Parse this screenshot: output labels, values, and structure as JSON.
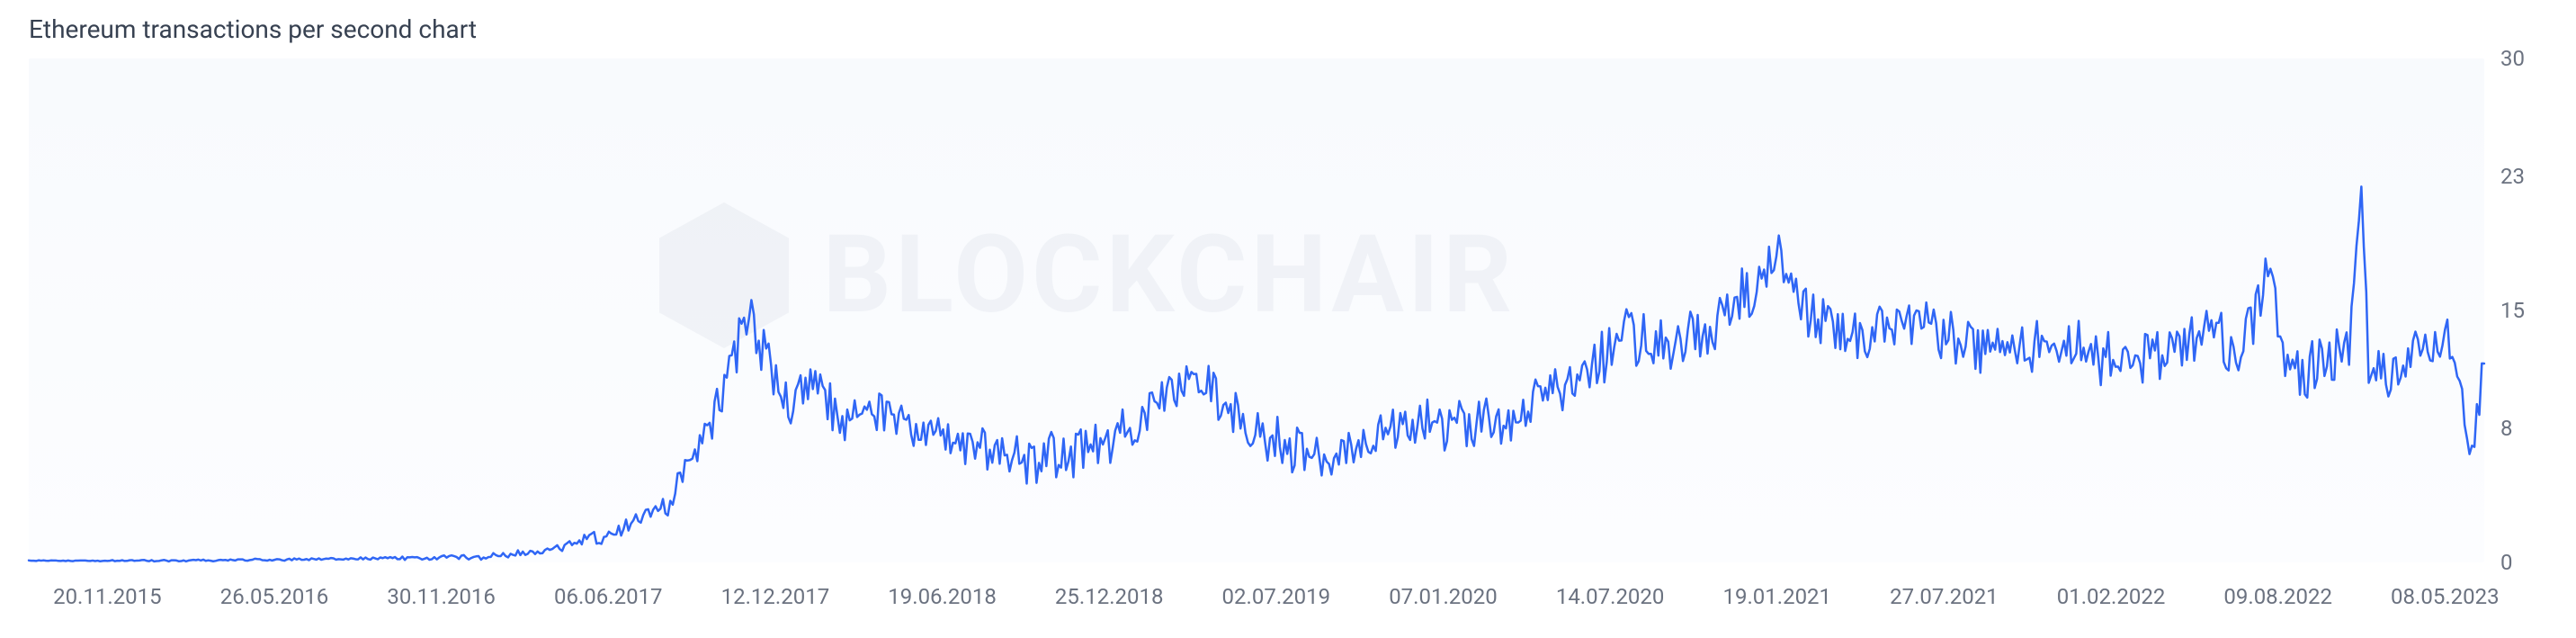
{
  "chart": {
    "type": "line",
    "title": "Ethereum transactions per second chart",
    "title_fontsize": 28,
    "title_color": "#374151",
    "background_gradient_top": "#f8fafd",
    "background_gradient_bottom": "#fcfdff",
    "watermark_text": "BLOCKCHAIR",
    "watermark_color": "#5b7390",
    "watermark_opacity": 0.06,
    "line_color": "#2f66f5",
    "line_width": 2.5,
    "y_axis": {
      "min": 0,
      "max": 30,
      "ticks": [
        0,
        8,
        15,
        23,
        30
      ],
      "label_color": "#6b7280",
      "label_fontsize": 24
    },
    "x_axis": {
      "labels": [
        "20.11.2015",
        "26.05.2016",
        "30.11.2016",
        "06.06.2017",
        "12.12.2017",
        "19.06.2018",
        "25.12.2018",
        "02.07.2019",
        "07.01.2020",
        "14.07.2020",
        "19.01.2021",
        "27.07.2021",
        "01.02.2022",
        "09.08.2022",
        "08.05.2023"
      ],
      "positions_pct": [
        3.2,
        10.0,
        16.8,
        23.6,
        30.4,
        37.2,
        44.0,
        50.8,
        57.6,
        64.4,
        71.2,
        78.0,
        84.8,
        91.6,
        98.4
      ],
      "label_color": "#6b7280",
      "label_fontsize": 24
    },
    "series": {
      "n_points": 1000,
      "base": [
        [
          0.0,
          0.1
        ],
        [
          0.03,
          0.1
        ],
        [
          0.06,
          0.1
        ],
        [
          0.09,
          0.15
        ],
        [
          0.12,
          0.2
        ],
        [
          0.15,
          0.25
        ],
        [
          0.18,
          0.3
        ],
        [
          0.2,
          0.5
        ],
        [
          0.22,
          1.0
        ],
        [
          0.24,
          1.8
        ],
        [
          0.26,
          3.5
        ],
        [
          0.27,
          6.0
        ],
        [
          0.28,
          9.0
        ],
        [
          0.29,
          13.5
        ],
        [
          0.295,
          14.8
        ],
        [
          0.3,
          12.0
        ],
        [
          0.31,
          9.5
        ],
        [
          0.32,
          11.0
        ],
        [
          0.33,
          8.5
        ],
        [
          0.35,
          9.0
        ],
        [
          0.37,
          7.5
        ],
        [
          0.39,
          6.8
        ],
        [
          0.41,
          6.2
        ],
        [
          0.43,
          6.5
        ],
        [
          0.45,
          8.0
        ],
        [
          0.47,
          10.5
        ],
        [
          0.48,
          11.0
        ],
        [
          0.49,
          9.0
        ],
        [
          0.51,
          7.0
        ],
        [
          0.53,
          5.8
        ],
        [
          0.55,
          7.5
        ],
        [
          0.57,
          8.5
        ],
        [
          0.59,
          8.0
        ],
        [
          0.61,
          9.5
        ],
        [
          0.63,
          11.0
        ],
        [
          0.65,
          13.5
        ],
        [
          0.67,
          13.0
        ],
        [
          0.69,
          14.5
        ],
        [
          0.7,
          16.0
        ],
        [
          0.71,
          18.5
        ],
        [
          0.715,
          17.0
        ],
        [
          0.73,
          14.0
        ],
        [
          0.75,
          13.5
        ],
        [
          0.77,
          14.5
        ],
        [
          0.79,
          13.0
        ],
        [
          0.81,
          12.5
        ],
        [
          0.83,
          13.0
        ],
        [
          0.85,
          12.0
        ],
        [
          0.87,
          12.5
        ],
        [
          0.89,
          13.5
        ],
        [
          0.9,
          12.0
        ],
        [
          0.91,
          16.5
        ],
        [
          0.912,
          18.0
        ],
        [
          0.918,
          12.0
        ],
        [
          0.93,
          11.5
        ],
        [
          0.945,
          12.5
        ],
        [
          0.95,
          21.5
        ],
        [
          0.953,
          12.0
        ],
        [
          0.96,
          11.0
        ],
        [
          0.97,
          12.0
        ],
        [
          0.985,
          13.5
        ],
        [
          0.99,
          10.0
        ],
        [
          0.995,
          7.0
        ],
        [
          1.0,
          12.0
        ]
      ],
      "noise_amplitude": [
        [
          0.0,
          0.02
        ],
        [
          0.15,
          0.08
        ],
        [
          0.2,
          0.2
        ],
        [
          0.25,
          0.5
        ],
        [
          0.28,
          1.2
        ],
        [
          0.3,
          1.5
        ],
        [
          0.35,
          1.2
        ],
        [
          0.45,
          1.4
        ],
        [
          0.55,
          1.3
        ],
        [
          0.65,
          1.5
        ],
        [
          0.72,
          1.6
        ],
        [
          0.8,
          1.4
        ],
        [
          0.9,
          1.5
        ],
        [
          0.95,
          1.6
        ],
        [
          1.0,
          1.4
        ]
      ],
      "seed": 12345
    }
  }
}
